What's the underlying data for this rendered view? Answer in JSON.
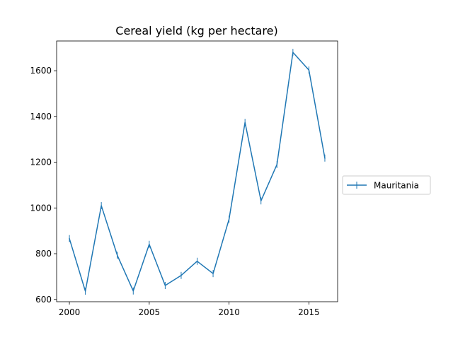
{
  "chart_data": {
    "type": "line",
    "title": "Cereal yield (kg per hectare)",
    "xlabel": "",
    "ylabel": "",
    "xlim": [
      1999.2,
      2016.8
    ],
    "ylim": [
      590,
      1730
    ],
    "xticks": [
      2000,
      2005,
      2010,
      2015
    ],
    "yticks": [
      600,
      800,
      1000,
      1200,
      1400,
      1600
    ],
    "grid": false,
    "legend": {
      "position": "right",
      "entries": [
        "Mauritania"
      ]
    },
    "series": [
      {
        "name": "Mauritania",
        "color": "#1f77b4",
        "marker": "vertical-tick",
        "x": [
          2000,
          2001,
          2002,
          2003,
          2004,
          2005,
          2006,
          2007,
          2008,
          2009,
          2010,
          2011,
          2012,
          2013,
          2014,
          2015,
          2016
        ],
        "y": [
          866,
          636,
          1010,
          793,
          637,
          841,
          661,
          705,
          767,
          713,
          951,
          1374,
          1031,
          1190,
          1680,
          1603,
          1218
        ]
      }
    ]
  }
}
